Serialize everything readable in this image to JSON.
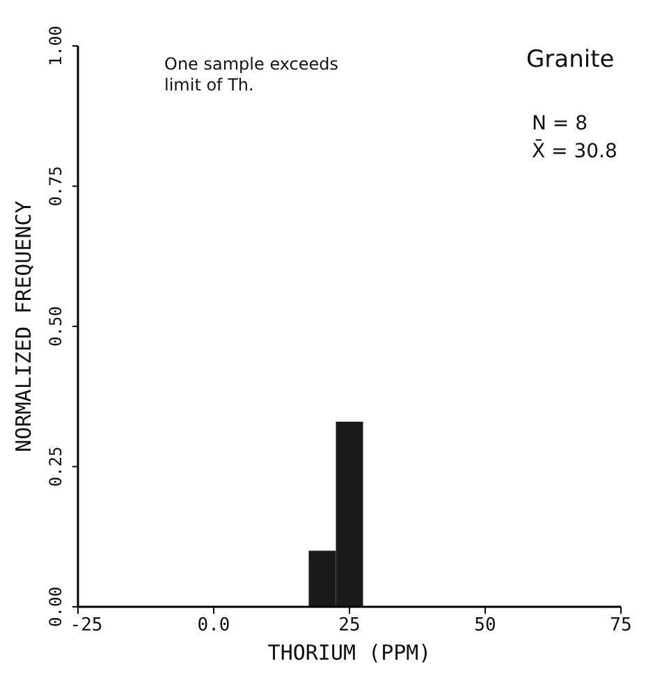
{
  "chart_data": {
    "type": "histogram",
    "xlabel": "THORIUM (PPM)",
    "ylabel": "NORMALIZED FREQUENCY",
    "bins": [
      17.5,
      22.5,
      27.5
    ],
    "values": [
      0.1,
      0.33
    ],
    "color": "#1a1a1a",
    "xlim": [
      -25,
      75
    ],
    "xticks": [
      -25,
      {
        "value": 0,
        "label": "0.0"
      },
      25,
      50,
      75
    ],
    "ylim": [
      0,
      1
    ],
    "yticks": [
      {
        "value": 0,
        "label": "0.00"
      },
      {
        "value": 0.25,
        "label": "0.25"
      },
      {
        "value": 0.5,
        "label": "0.50"
      },
      {
        "value": 0.75,
        "label": "0.75"
      },
      {
        "value": 1,
        "label": "1.00"
      }
    ],
    "grid": false,
    "annotations": [
      "One sample exceeds\nlimit of Th.",
      "Granite",
      "N = 8",
      "X̄ = 30.8"
    ]
  }
}
